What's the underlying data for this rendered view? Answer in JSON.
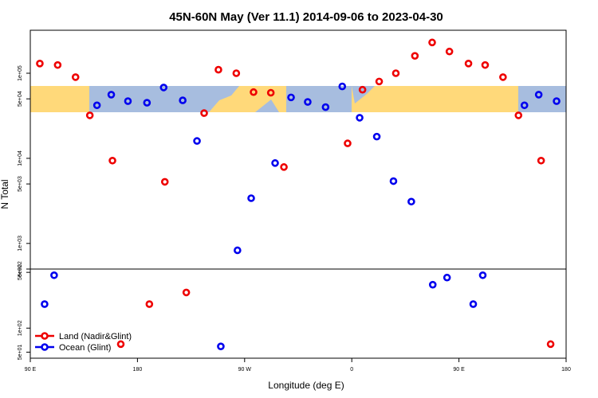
{
  "chart_data": {
    "type": "scatter",
    "title": "45N-60N May (Ver 11.1)   2014-09-06 to 2023-04-30",
    "xlabel": "Longitude (deg E)",
    "ylabel": "N Total",
    "xlim": [
      90,
      540
    ],
    "xticks": [
      {
        "value": 90,
        "label": "90 E"
      },
      {
        "value": 180,
        "label": "180"
      },
      {
        "value": 270,
        "label": "90 W"
      },
      {
        "value": 360,
        "label": "0"
      },
      {
        "value": 450,
        "label": "90 E"
      },
      {
        "value": 540,
        "label": "180"
      }
    ],
    "log_y": true,
    "legend": "lower left",
    "panels": [
      {
        "ylim": [
          500,
          320000
        ],
        "yticks": [
          {
            "value": 100000,
            "label": "1e+05"
          },
          {
            "value": 50000,
            "label": "5e+04"
          },
          {
            "value": 10000,
            "label": "1e+04"
          },
          {
            "value": 5000,
            "label": "5e+03"
          },
          {
            "value": 1000,
            "label": "1e+03"
          },
          {
            "value": 500,
            "label": "5e+02"
          }
        ]
      },
      {
        "ylim": [
          42,
          550
        ],
        "yticks": [
          {
            "value": 500,
            "label": "5e+02"
          },
          {
            "value": 100,
            "label": "1e+02"
          },
          {
            "value": 50,
            "label": "5e+01"
          }
        ]
      }
    ],
    "series": [
      {
        "name": "Land (Nadir&Glint)",
        "color": "#ee0000",
        "x": [
          98,
          113,
          128,
          140,
          159,
          203,
          236,
          248,
          263,
          277.5,
          292,
          303,
          356.5,
          369,
          383,
          397,
          413,
          427.5,
          442,
          458,
          472,
          487,
          500,
          519,
          166,
          190,
          221,
          527
        ],
        "values": [
          130000,
          125000,
          90000,
          32000,
          9400,
          5300,
          34000,
          110000,
          100000,
          60000,
          59000,
          7900,
          15000,
          64000,
          80000,
          100000,
          160000,
          230000,
          180000,
          130000,
          125000,
          90000,
          32000,
          9400,
          63,
          200,
          280,
          63
        ]
      },
      {
        "name": "Ocean (Glint)",
        "color": "#0000ee",
        "x": [
          146,
          158,
          172,
          188,
          202,
          218,
          230,
          264,
          275.5,
          295.6,
          309,
          323,
          338,
          352,
          366.6,
          381,
          395,
          410,
          505,
          517,
          532,
          102,
          110,
          250,
          428,
          440,
          462,
          470
        ],
        "values": [
          42000,
          56000,
          47000,
          45000,
          68000,
          48000,
          16000,
          830,
          3400,
          8800,
          52000,
          46000,
          40000,
          70000,
          30000,
          18000,
          5400,
          3100,
          42000,
          56000,
          47000,
          200,
          460,
          59,
          350,
          430,
          200,
          460
        ]
      }
    ]
  }
}
